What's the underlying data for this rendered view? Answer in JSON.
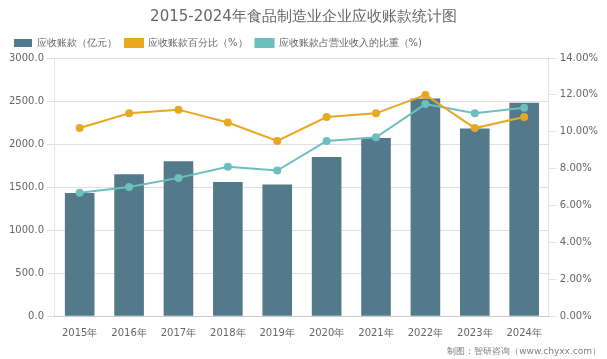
{
  "chart_data": {
    "type": "bar",
    "title": "2015-2024年食品制造业企业应收账款统计图",
    "annotations": [
      "制图：智研咨询（www.chyxx.com）"
    ],
    "categories": [
      "2015年",
      "2016年",
      "2017年",
      "2018年",
      "2019年",
      "2020年",
      "2021年",
      "2022年",
      "2023年",
      "2024年"
    ],
    "series": [
      {
        "name": "应收账款（亿元）",
        "type": "bar",
        "color": "#527a8a",
        "values": [
          1430,
          1650,
          1800,
          1560,
          1530,
          1850,
          2070,
          2530,
          2180,
          2480
        ]
      },
      {
        "name": "应收账款百分比（%）",
        "type": "line",
        "axis": "y2",
        "color": "#e8a820",
        "marker": "circle",
        "line_style": "solid",
        "values": [
          10.2,
          11.0,
          11.2,
          10.5,
          9.5,
          10.8,
          11.0,
          12.0,
          10.2,
          10.8
        ]
      },
      {
        "name": "应收账款占营业收入的比重（%)",
        "type": "line",
        "axis": "y2",
        "color": "#6dbfbf",
        "marker": "circle",
        "line_style": "solid",
        "values": [
          6.7,
          7.0,
          7.5,
          8.1,
          7.9,
          9.5,
          9.7,
          11.5,
          11.0,
          11.3
        ]
      }
    ],
    "ylim": [
      0,
      3000
    ],
    "yticks": [
      {
        "value": 0,
        "label": "0.0"
      },
      {
        "value": 500,
        "label": "500.0"
      },
      {
        "value": 1000,
        "label": "1000.0"
      },
      {
        "value": 1500,
        "label": "1500.0"
      },
      {
        "value": 2000,
        "label": "2000.0"
      },
      {
        "value": 2500,
        "label": "2500.0"
      },
      {
        "value": 3000,
        "label": "3000.0"
      }
    ],
    "y2lim": [
      0,
      14
    ],
    "y2ticks": [
      {
        "value": 0,
        "label": "0.00%"
      },
      {
        "value": 2,
        "label": "2.00%"
      },
      {
        "value": 4,
        "label": "4.00%"
      },
      {
        "value": 6,
        "label": "6.00%"
      },
      {
        "value": 8,
        "label": "8.00%"
      },
      {
        "value": 10,
        "label": "10.00%"
      },
      {
        "value": 12,
        "label": "12.00%"
      },
      {
        "value": 14,
        "label": "14.00%"
      }
    ],
    "grid": true,
    "legend": "upper left"
  }
}
